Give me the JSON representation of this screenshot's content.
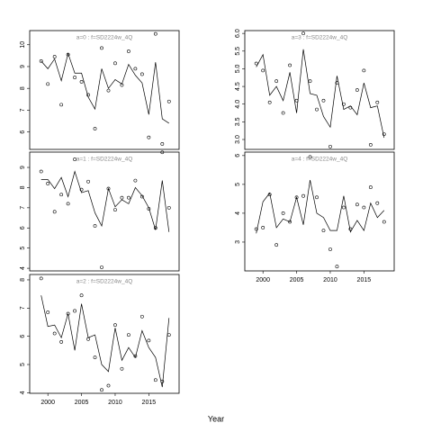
{
  "xlabel": "Year",
  "chart_data": [
    {
      "type": "scatter-line",
      "title": "a=0  :  f=SD2224w_4Q",
      "xlim": [
        1997.3,
        2019.5
      ],
      "ylim": [
        5.2,
        10.65
      ],
      "yticks": [
        6,
        7,
        8,
        9,
        10
      ],
      "x": [
        1999,
        2000,
        2001,
        2002,
        2003,
        2004,
        2005,
        2006,
        2007,
        2008,
        2009,
        2010,
        2011,
        2012,
        2013,
        2014,
        2015,
        2016,
        2017,
        2018
      ],
      "series": [
        {
          "style": "points",
          "color": "#000000",
          "values": [
            9.25,
            8.2,
            9.45,
            7.25,
            9.55,
            8.5,
            8.3,
            7.7,
            6.15,
            9.85,
            7.9,
            9.15,
            8.15,
            9.7,
            8.9,
            8.65,
            5.75,
            10.5,
            5.45,
            7.4
          ]
        },
        {
          "style": "line",
          "color": "#000000",
          "values": [
            9.25,
            8.9,
            9.35,
            8.35,
            9.6,
            8.7,
            8.7,
            7.6,
            7.05,
            8.9,
            8.0,
            8.4,
            8.2,
            9.1,
            8.6,
            8.25,
            6.8,
            9.2,
            6.6,
            6.4
          ]
        }
      ]
    },
    {
      "type": "scatter-line",
      "title": "a=1  :  f=SD2224w_4Q",
      "xlim": [
        1997.3,
        2019.5
      ],
      "ylim": [
        3.87,
        9.76
      ],
      "yticks": [
        4,
        5,
        6,
        7,
        8,
        9
      ],
      "x": [
        1999,
        2000,
        2001,
        2002,
        2003,
        2004,
        2005,
        2006,
        2007,
        2008,
        2009,
        2010,
        2011,
        2012,
        2013,
        2014,
        2015,
        2016,
        2017,
        2018
      ],
      "series": [
        {
          "style": "points",
          "color": "#000000",
          "values": [
            8.8,
            8.2,
            6.8,
            7.65,
            7.2,
            9.4,
            7.9,
            8.3,
            6.1,
            4.05,
            7.95,
            6.9,
            7.5,
            7.5,
            8.35,
            7.55,
            6.95,
            6.0,
            9.75,
            7.0
          ]
        },
        {
          "style": "line",
          "color": "#000000",
          "values": [
            8.4,
            8.4,
            7.95,
            8.5,
            7.55,
            8.8,
            7.75,
            7.85,
            6.75,
            6.1,
            7.95,
            7.05,
            7.4,
            7.2,
            8.0,
            7.6,
            7.0,
            5.9,
            8.35,
            5.8
          ]
        }
      ]
    },
    {
      "type": "scatter-line",
      "title": "a=2  :  f=SD2224w_4Q",
      "xlim": [
        1997.3,
        2019.5
      ],
      "ylim": [
        3.98,
        8.19
      ],
      "yticks": [
        4,
        5,
        6,
        7,
        8
      ],
      "xticks": [
        2000,
        2005,
        2010,
        2015
      ],
      "x": [
        1999,
        2000,
        2001,
        2002,
        2003,
        2004,
        2005,
        2006,
        2007,
        2008,
        2009,
        2010,
        2011,
        2012,
        2013,
        2014,
        2015,
        2016,
        2017,
        2018
      ],
      "series": [
        {
          "style": "points",
          "color": "#000000",
          "values": [
            8.05,
            6.85,
            6.1,
            5.8,
            6.8,
            6.9,
            7.45,
            5.9,
            5.25,
            4.1,
            4.25,
            6.4,
            4.85,
            6.05,
            5.3,
            6.7,
            5.85,
            4.45,
            4.4,
            6.05
          ]
        },
        {
          "style": "line",
          "color": "#000000",
          "values": [
            7.45,
            6.35,
            6.4,
            5.95,
            6.8,
            5.5,
            7.15,
            5.95,
            6.05,
            5.0,
            4.75,
            6.3,
            5.15,
            5.6,
            5.25,
            6.2,
            5.6,
            5.25,
            4.2,
            6.65
          ]
        }
      ]
    },
    {
      "type": "scatter-line",
      "title": "a=3  :  f=SD2224w_4Q",
      "xlim": [
        1997.3,
        2019.5
      ],
      "ylim": [
        2.72,
        6.08
      ],
      "yticks": [
        {
          "value": 3,
          "label": "3.0"
        },
        3.5,
        {
          "value": 4,
          "label": "4.0"
        },
        4.5,
        {
          "value": 5,
          "label": "5.0"
        },
        5.5,
        {
          "value": 6,
          "label": "6.0"
        }
      ],
      "x": [
        1999,
        2000,
        2001,
        2002,
        2003,
        2004,
        2005,
        2006,
        2007,
        2008,
        2009,
        2010,
        2011,
        2012,
        2013,
        2014,
        2015,
        2016,
        2017,
        2018
      ],
      "series": [
        {
          "style": "points",
          "color": "#000000",
          "values": [
            5.15,
            4.95,
            4.05,
            4.65,
            3.75,
            5.1,
            4.1,
            6.0,
            4.65,
            3.85,
            4.1,
            2.8,
            4.6,
            4.0,
            3.9,
            4.4,
            4.95,
            2.85,
            4.05,
            3.15
          ]
        },
        {
          "style": "line",
          "color": "#000000",
          "values": [
            5.05,
            5.4,
            4.25,
            4.5,
            4.1,
            4.9,
            3.75,
            5.55,
            4.3,
            4.25,
            3.65,
            3.35,
            4.8,
            3.85,
            3.95,
            3.7,
            4.6,
            3.9,
            3.95,
            3.05
          ]
        }
      ]
    },
    {
      "type": "scatter-line",
      "title": "a=4  :  f=SD2224w_4Q",
      "xlim": [
        1997.3,
        2019.5
      ],
      "ylim": [
        2.0,
        6.12
      ],
      "yticks": [
        3,
        4,
        5,
        6
      ],
      "xticks": [
        2000,
        2005,
        2010,
        2015
      ],
      "x": [
        1999,
        2000,
        2001,
        2002,
        2003,
        2004,
        2005,
        2006,
        2007,
        2008,
        2009,
        2010,
        2011,
        2012,
        2013,
        2014,
        2015,
        2016,
        2017,
        2018
      ],
      "series": [
        {
          "style": "points",
          "color": "#000000",
          "values": [
            3.45,
            3.5,
            4.65,
            2.9,
            4.0,
            3.7,
            4.55,
            4.6,
            5.95,
            4.55,
            3.4,
            2.75,
            2.15,
            4.2,
            3.45,
            4.3,
            4.2,
            4.9,
            4.35,
            3.7
          ]
        },
        {
          "style": "line",
          "color": "#000000",
          "values": [
            3.3,
            4.4,
            4.7,
            3.5,
            3.8,
            3.7,
            4.55,
            3.6,
            5.15,
            4.0,
            3.85,
            3.4,
            3.4,
            4.6,
            3.35,
            3.75,
            3.4,
            4.35,
            3.85,
            4.1
          ]
        }
      ]
    }
  ]
}
